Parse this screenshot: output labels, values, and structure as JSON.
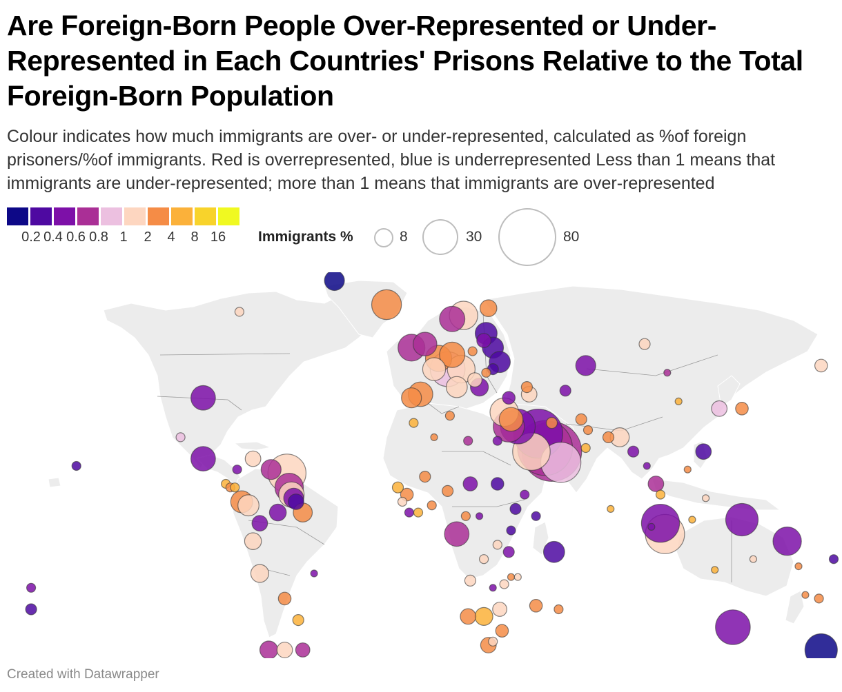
{
  "title": "Are Foreign-Born People Over-Represented or Under-Represented in Each Countries' Prisons Relative to the Total Foreign-Born Population",
  "subtitle": "Colour indicates how much immigrants are over- or under-represented, calculated as %of foreign prisoners/%of immigrants. Red is overrepresented, blue is underrepresented Less than 1 means that immigrants are under-represented; more than 1 means that immigrants are over-represented",
  "color_legend": {
    "colors": [
      "#0d0887",
      "#4e09a1",
      "#7d10a8",
      "#aa2f96",
      "#ecc0e0",
      "#fdd6c0",
      "#f58c46",
      "#fbb13a",
      "#f8d32b",
      "#f0f921"
    ],
    "ticks": [
      "0.2",
      "0.4",
      "0.6",
      "0.8",
      "1",
      "2",
      "4",
      "8",
      "16"
    ]
  },
  "size_legend": {
    "title": "Immigrants %",
    "values": [
      "8",
      "30",
      "80"
    ]
  },
  "footer": "Created with Datawrapper",
  "map": {
    "land_color": "#ececec",
    "border_color": "#9a9a9a",
    "bubbles": [
      {
        "lon": -100,
        "lat": 39,
        "imm": 15,
        "ratio": 0.5
      },
      {
        "lon": -42,
        "lat": 72,
        "imm": 10,
        "ratio": 0.15
      },
      {
        "lon": -19,
        "lat": 65,
        "imm": 22,
        "ratio": 2
      },
      {
        "lon": -8,
        "lat": 53,
        "imm": 18,
        "ratio": 0.7
      },
      {
        "lon": -2,
        "lat": 54,
        "imm": 14,
        "ratio": 0.6
      },
      {
        "lon": 2,
        "lat": 47,
        "imm": 13,
        "ratio": 1.8
      },
      {
        "lon": -4,
        "lat": 40,
        "imm": 15,
        "ratio": 2.2
      },
      {
        "lon": 12,
        "lat": 42,
        "imm": 11,
        "ratio": 1.7
      },
      {
        "lon": -8,
        "lat": 39,
        "imm": 10,
        "ratio": 2
      },
      {
        "lon": 10,
        "lat": 61,
        "imm": 16,
        "ratio": 0.7
      },
      {
        "lon": 15,
        "lat": 62,
        "imm": 20,
        "ratio": 1.9
      },
      {
        "lon": 26,
        "lat": 64,
        "imm": 7,
        "ratio": 2.8
      },
      {
        "lon": 10,
        "lat": 51,
        "imm": 16,
        "ratio": 2
      },
      {
        "lon": 4,
        "lat": 50,
        "imm": 17,
        "ratio": 2.3
      },
      {
        "lon": 8,
        "lat": 47,
        "imm": 30,
        "ratio": 0.9
      },
      {
        "lon": 14,
        "lat": 47,
        "imm": 19,
        "ratio": 1.8
      },
      {
        "lon": 19,
        "lat": 52,
        "imm": 2,
        "ratio": 3.5
      },
      {
        "lon": 25,
        "lat": 57,
        "imm": 12,
        "ratio": 0.25
      },
      {
        "lon": 24,
        "lat": 55,
        "imm": 5,
        "ratio": 0.4
      },
      {
        "lon": 28,
        "lat": 53,
        "imm": 11,
        "ratio": 0.25
      },
      {
        "lon": 31,
        "lat": 49,
        "imm": 11,
        "ratio": 0.2
      },
      {
        "lon": 28,
        "lat": 47,
        "imm": 3,
        "ratio": 0.3
      },
      {
        "lon": 25,
        "lat": 46,
        "imm": 2,
        "ratio": 3
      },
      {
        "lon": 22,
        "lat": 42,
        "imm": 8,
        "ratio": 0.5
      },
      {
        "lon": 20,
        "lat": 44,
        "imm": 5,
        "ratio": 1.5
      },
      {
        "lon": 35,
        "lat": 39,
        "imm": 4,
        "ratio": 0.5
      },
      {
        "lon": 33,
        "lat": 35,
        "imm": 20,
        "ratio": 1.5
      },
      {
        "lon": 43,
        "lat": 42,
        "imm": 3,
        "ratio": 3.5
      },
      {
        "lon": 44,
        "lat": 40,
        "imm": 6,
        "ratio": 1.5
      },
      {
        "lon": 36,
        "lat": 33,
        "imm": 14,
        "ratio": 3
      },
      {
        "lon": 35,
        "lat": 31,
        "imm": 24,
        "ratio": 0.6
      },
      {
        "lon": 39,
        "lat": 31,
        "imm": 30,
        "ratio": 0.4
      },
      {
        "lon": 45,
        "lat": 24,
        "imm": 35,
        "ratio": 1.8
      },
      {
        "lon": 48,
        "lat": 29,
        "imm": 60,
        "ratio": 0.5
      },
      {
        "lon": 51,
        "lat": 25,
        "imm": 75,
        "ratio": 0.6
      },
      {
        "lon": 54,
        "lat": 24,
        "imm": 88,
        "ratio": 0.7
      },
      {
        "lon": 54,
        "lat": 32,
        "imm": 3,
        "ratio": 2.5
      },
      {
        "lon": 58,
        "lat": 21,
        "imm": 40,
        "ratio": 0.8
      },
      {
        "lon": 30,
        "lat": 27,
        "imm": 2,
        "ratio": 0.5
      },
      {
        "lon": 17,
        "lat": 27,
        "imm": 2,
        "ratio": 0.6
      },
      {
        "lon": 9,
        "lat": 34,
        "imm": 2,
        "ratio": 3
      },
      {
        "lon": -7,
        "lat": 32,
        "imm": 2,
        "ratio": 4
      },
      {
        "lon": 2,
        "lat": 28,
        "imm": 1,
        "ratio": 2.5
      },
      {
        "lon": -2,
        "lat": 17,
        "imm": 3,
        "ratio": 3
      },
      {
        "lon": 18,
        "lat": 15,
        "imm": 5,
        "ratio": 0.4
      },
      {
        "lon": 30,
        "lat": 15,
        "imm": 4,
        "ratio": 0.3
      },
      {
        "lon": -14,
        "lat": 14,
        "imm": 3,
        "ratio": 4
      },
      {
        "lon": -10,
        "lat": 12,
        "imm": 4,
        "ratio": 3
      },
      {
        "lon": -12,
        "lat": 10,
        "imm": 2,
        "ratio": 1.5
      },
      {
        "lon": -9,
        "lat": 7,
        "imm": 2,
        "ratio": 0.5
      },
      {
        "lon": -5,
        "lat": 7,
        "imm": 2,
        "ratio": 7
      },
      {
        "lon": 1,
        "lat": 9,
        "imm": 2,
        "ratio": 2
      },
      {
        "lon": 8,
        "lat": 13,
        "imm": 3,
        "ratio": 2
      },
      {
        "lon": 16,
        "lat": 6,
        "imm": 2,
        "ratio": 3
      },
      {
        "lon": 22,
        "lat": 6,
        "imm": 1,
        "ratio": 0.5
      },
      {
        "lon": 12,
        "lat": 1,
        "imm": 15,
        "ratio": 0.6
      },
      {
        "lon": 38,
        "lat": 8,
        "imm": 3,
        "ratio": 0.2
      },
      {
        "lon": 42,
        "lat": 12,
        "imm": 2,
        "ratio": 0.4
      },
      {
        "lon": 47,
        "lat": 6,
        "imm": 2,
        "ratio": 0.2
      },
      {
        "lon": 36,
        "lat": 2,
        "imm": 2,
        "ratio": 0.3
      },
      {
        "lon": 35,
        "lat": -4,
        "imm": 3,
        "ratio": 0.4
      },
      {
        "lon": 30,
        "lat": -2,
        "imm": 2,
        "ratio": 1.5
      },
      {
        "lon": 24,
        "lat": -6,
        "imm": 2,
        "ratio": 1.7
      },
      {
        "lon": 55,
        "lat": -4,
        "imm": 11,
        "ratio": 0.2
      },
      {
        "lon": 57,
        "lat": -20,
        "imm": 2,
        "ratio": 3
      },
      {
        "lon": 18,
        "lat": -12,
        "imm": 3,
        "ratio": 1.8
      },
      {
        "lon": 28,
        "lat": -14,
        "imm": 1,
        "ratio": 0.4
      },
      {
        "lon": 33,
        "lat": -13,
        "imm": 2,
        "ratio": 1.6
      },
      {
        "lon": 36,
        "lat": -11,
        "imm": 1,
        "ratio": 2.5
      },
      {
        "lon": 39,
        "lat": -11,
        "imm": 1,
        "ratio": 1.3
      },
      {
        "lon": 31,
        "lat": -20,
        "imm": 5,
        "ratio": 1.5
      },
      {
        "lon": 17,
        "lat": -22,
        "imm": 6,
        "ratio": 3
      },
      {
        "lon": 24,
        "lat": -22,
        "imm": 8,
        "ratio": 6
      },
      {
        "lon": 26,
        "lat": -30,
        "imm": 6,
        "ratio": 3
      },
      {
        "lon": 28,
        "lat": -29,
        "imm": 2,
        "ratio": 1.5
      },
      {
        "lon": 32,
        "lat": -26,
        "imm": 4,
        "ratio": 3
      },
      {
        "lon": 47,
        "lat": -19,
        "imm": 4,
        "ratio": 3
      },
      {
        "lon": 69,
        "lat": 48,
        "imm": 10,
        "ratio": 0.5
      },
      {
        "lon": 60,
        "lat": 41,
        "imm": 3,
        "ratio": 0.4
      },
      {
        "lon": 67,
        "lat": 33,
        "imm": 3,
        "ratio": 2
      },
      {
        "lon": 70,
        "lat": 30,
        "imm": 2,
        "ratio": 3
      },
      {
        "lon": 69,
        "lat": 25,
        "imm": 2,
        "ratio": 4
      },
      {
        "lon": 79,
        "lat": 28,
        "imm": 3,
        "ratio": 3
      },
      {
        "lon": 84,
        "lat": 28,
        "imm": 9,
        "ratio": 1
      },
      {
        "lon": 90,
        "lat": 24,
        "imm": 3,
        "ratio": 0.5
      },
      {
        "lon": 80,
        "lat": 8,
        "imm": 1,
        "ratio": 4
      },
      {
        "lon": 96,
        "lat": 20,
        "imm": 1,
        "ratio": 0.5
      },
      {
        "lon": 100,
        "lat": 15,
        "imm": 6,
        "ratio": 0.7
      },
      {
        "lon": 102,
        "lat": 12,
        "imm": 2,
        "ratio": 6
      },
      {
        "lon": 102,
        "lat": 4,
        "imm": 36,
        "ratio": 0.4
      },
      {
        "lon": 104,
        "lat": 1,
        "imm": 38,
        "ratio": 1.8
      },
      {
        "lon": 98,
        "lat": 3,
        "imm": 1,
        "ratio": 0.5
      },
      {
        "lon": 95,
        "lat": 54,
        "imm": 3,
        "ratio": 1.5
      },
      {
        "lon": 105,
        "lat": 46,
        "imm": 1,
        "ratio": 0.6
      },
      {
        "lon": 110,
        "lat": 38,
        "imm": 1,
        "ratio": 4
      },
      {
        "lon": 128,
        "lat": 36,
        "imm": 6,
        "ratio": 0.9
      },
      {
        "lon": 138,
        "lat": 36,
        "imm": 4,
        "ratio": 3
      },
      {
        "lon": 121,
        "lat": 24,
        "imm": 6,
        "ratio": 0.2
      },
      {
        "lon": 114,
        "lat": 19,
        "imm": 1,
        "ratio": 3
      },
      {
        "lon": 116,
        "lat": 5,
        "imm": 1,
        "ratio": 4
      },
      {
        "lon": 122,
        "lat": 11,
        "imm": 1,
        "ratio": 1
      },
      {
        "lon": 138,
        "lat": 5,
        "imm": 26,
        "ratio": 0.4
      },
      {
        "lon": 126,
        "lat": -9,
        "imm": 1,
        "ratio": 5
      },
      {
        "lon": 143,
        "lat": -6,
        "imm": 1,
        "ratio": 1.5
      },
      {
        "lon": 158,
        "lat": -1,
        "imm": 20,
        "ratio": 0.4
      },
      {
        "lon": 163,
        "lat": -8,
        "imm": 1,
        "ratio": 3
      },
      {
        "lon": 166,
        "lat": -16,
        "imm": 1,
        "ratio": 3
      },
      {
        "lon": 172,
        "lat": -17,
        "imm": 2,
        "ratio": 2
      },
      {
        "lon": 180,
        "lat": -6,
        "imm": 2,
        "ratio": 0.2
      },
      {
        "lon": 134,
        "lat": -25,
        "imm": 30,
        "ratio": 0.5
      },
      {
        "lon": 173,
        "lat": -41,
        "imm": 26,
        "ratio": 0.15
      },
      {
        "lon": 173,
        "lat": 48,
        "imm": 4,
        "ratio": 1.8
      },
      {
        "lon": -156,
        "lat": 20,
        "imm": 2,
        "ratio": 0.2
      },
      {
        "lon": -176,
        "lat": -14,
        "imm": 2,
        "ratio": 0.5
      },
      {
        "lon": -176,
        "lat": -20,
        "imm": 3,
        "ratio": 0.2
      },
      {
        "lon": -84,
        "lat": 63,
        "imm": 2,
        "ratio": 1
      },
      {
        "lon": -110,
        "lat": 28,
        "imm": 2,
        "ratio": 0.9
      },
      {
        "lon": -100,
        "lat": 22,
        "imm": 15,
        "ratio": 0.4
      },
      {
        "lon": -90,
        "lat": 15,
        "imm": 2,
        "ratio": 5
      },
      {
        "lon": -88,
        "lat": 14,
        "imm": 2,
        "ratio": 2
      },
      {
        "lon": -86,
        "lat": 14,
        "imm": 2,
        "ratio": 4
      },
      {
        "lon": -83,
        "lat": 10,
        "imm": 12,
        "ratio": 2
      },
      {
        "lon": -80,
        "lat": 9,
        "imm": 11,
        "ratio": 1.2
      },
      {
        "lon": -85,
        "lat": 19,
        "imm": 2,
        "ratio": 0.4
      },
      {
        "lon": -78,
        "lat": 22,
        "imm": 6,
        "ratio": 1.8
      },
      {
        "lon": -70,
        "lat": 19,
        "imm": 10,
        "ratio": 0.6
      },
      {
        "lon": -63,
        "lat": 18,
        "imm": 36,
        "ratio": 1.2
      },
      {
        "lon": -62,
        "lat": 14,
        "imm": 20,
        "ratio": 0.7
      },
      {
        "lon": -61,
        "lat": 12,
        "imm": 16,
        "ratio": 1.7
      },
      {
        "lon": -60,
        "lat": 11,
        "imm": 10,
        "ratio": 0.4
      },
      {
        "lon": -59,
        "lat": 10,
        "imm": 6,
        "ratio": 0.3
      },
      {
        "lon": -56,
        "lat": 7,
        "imm": 9,
        "ratio": 3
      },
      {
        "lon": -67,
        "lat": 7,
        "imm": 7,
        "ratio": 0.4
      },
      {
        "lon": -75,
        "lat": 4,
        "imm": 6,
        "ratio": 0.5
      },
      {
        "lon": -78,
        "lat": -1,
        "imm": 7,
        "ratio": 1.8
      },
      {
        "lon": -75,
        "lat": -10,
        "imm": 8,
        "ratio": 1.8
      },
      {
        "lon": -64,
        "lat": -17,
        "imm": 4,
        "ratio": 3
      },
      {
        "lon": -58,
        "lat": -23,
        "imm": 3,
        "ratio": 7
      },
      {
        "lon": -51,
        "lat": -10,
        "imm": 1,
        "ratio": 0.5
      },
      {
        "lon": -71,
        "lat": -35,
        "imm": 8,
        "ratio": 0.6
      },
      {
        "lon": -64,
        "lat": -34,
        "imm": 6,
        "ratio": 1.6
      },
      {
        "lon": -56,
        "lat": -33,
        "imm": 5,
        "ratio": 0.6
      }
    ]
  }
}
